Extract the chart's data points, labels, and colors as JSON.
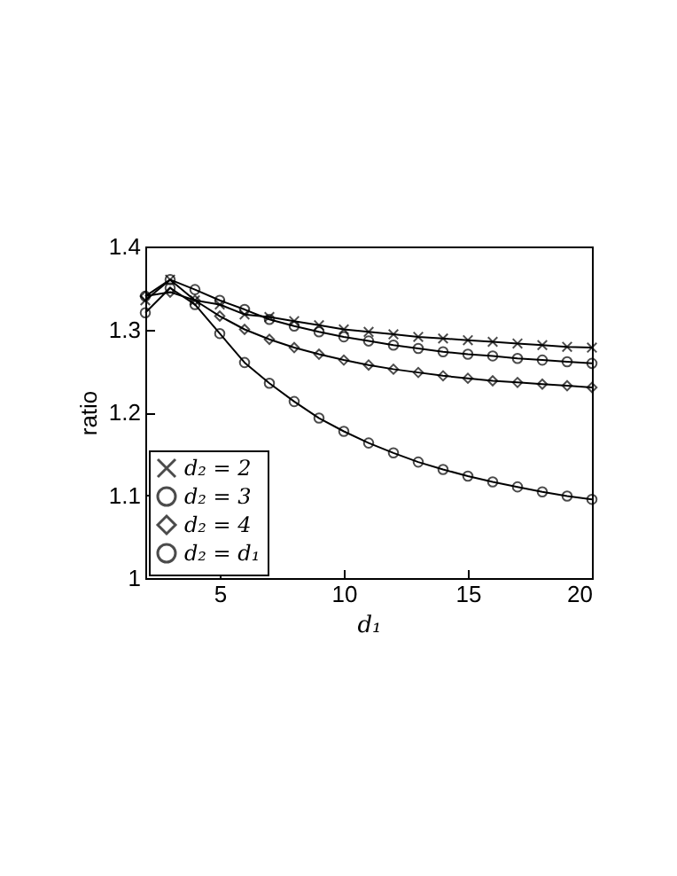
{
  "chart_data": {
    "type": "line",
    "xlabel": "d₁",
    "ylabel": "ratio",
    "x": [
      2,
      3,
      4,
      5,
      6,
      7,
      8,
      9,
      10,
      11,
      12,
      13,
      14,
      15,
      16,
      17,
      18,
      19,
      20
    ],
    "xlim": [
      2,
      20
    ],
    "xticks": [
      5,
      10,
      15,
      20
    ],
    "ylim": [
      1,
      1.4
    ],
    "yticks": [
      {
        "value": 1,
        "label": "1"
      },
      1.1,
      1.2,
      1.3,
      1.4
    ],
    "grid": false,
    "legend": "bottom left",
    "line_style": "solid",
    "series": [
      {
        "name": "d₂ = 2",
        "color": "#000000",
        "marker": "cross",
        "values": [
          1.335,
          1.36,
          1.335,
          1.33,
          1.318,
          1.315,
          1.31,
          1.305,
          1.3,
          1.297,
          1.294,
          1.291,
          1.289,
          1.287,
          1.285,
          1.283,
          1.281,
          1.279,
          1.278
        ]
      },
      {
        "name": "d₂ = 3",
        "color": "#000000",
        "marker": "circle",
        "values": [
          1.34,
          1.36,
          1.348,
          1.335,
          1.324,
          1.312,
          1.304,
          1.297,
          1.291,
          1.286,
          1.281,
          1.277,
          1.273,
          1.27,
          1.268,
          1.265,
          1.263,
          1.261,
          1.259
        ]
      },
      {
        "name": "d₂ = 4",
        "color": "#000000",
        "marker": "diamond",
        "values": [
          1.34,
          1.345,
          1.335,
          1.316,
          1.3,
          1.288,
          1.278,
          1.27,
          1.263,
          1.257,
          1.252,
          1.248,
          1.244,
          1.241,
          1.238,
          1.236,
          1.234,
          1.232,
          1.23
        ]
      },
      {
        "name": "d₂ = d₁",
        "color": "#000000",
        "marker": "circle",
        "values": [
          1.32,
          1.35,
          1.33,
          1.295,
          1.26,
          1.235,
          1.213,
          1.193,
          1.177,
          1.163,
          1.151,
          1.14,
          1.131,
          1.123,
          1.116,
          1.11,
          1.104,
          1.099,
          1.095
        ]
      }
    ]
  }
}
